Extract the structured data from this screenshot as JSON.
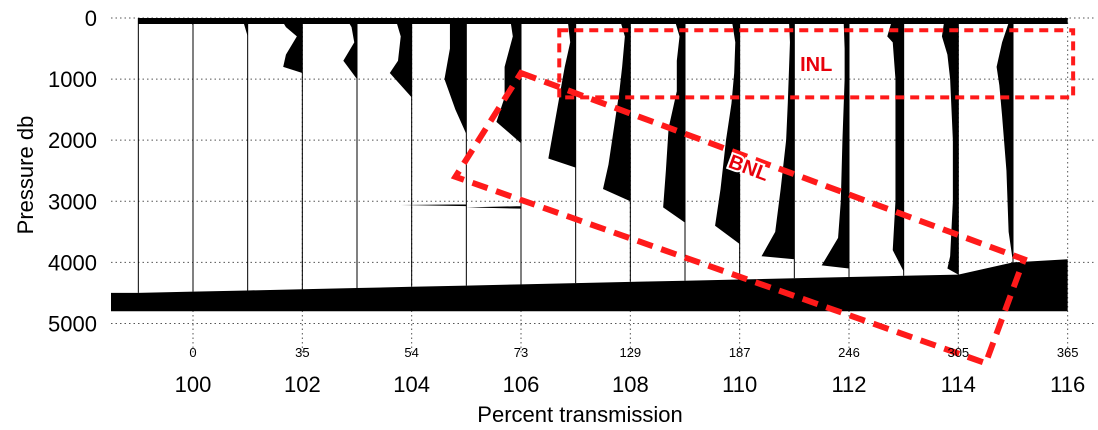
{
  "chart_data": {
    "type": "line",
    "title": "",
    "xlabel": "Percent transmission",
    "ylabel": "Pressure db",
    "xlim": [
      98.5,
      116.5
    ],
    "ylim": [
      5500,
      0
    ],
    "y_inverted": true,
    "grid": true,
    "xticks": [
      100,
      102,
      104,
      106,
      108,
      110,
      112,
      114,
      116
    ],
    "yticks": [
      0,
      1000,
      2000,
      3000,
      4000,
      5000
    ],
    "station_labels": [
      {
        "label": "0",
        "x": 100
      },
      {
        "label": "35",
        "x": 102
      },
      {
        "label": "54",
        "x": 104
      },
      {
        "label": "73",
        "x": 106
      },
      {
        "label": "129",
        "x": 108
      },
      {
        "label": "187",
        "x": 110
      },
      {
        "label": "246",
        "x": 112
      },
      {
        "label": "305",
        "x": 114
      },
      {
        "label": "365",
        "x": 116
      }
    ],
    "profiles": [
      {
        "offset": 99,
        "bottom": 4500,
        "deficit": [
          [
            0,
            0
          ],
          [
            4500,
            0
          ]
        ]
      },
      {
        "offset": 100,
        "bottom": 4480,
        "deficit": [
          [
            0,
            0.1
          ],
          [
            120,
            0
          ],
          [
            4480,
            0
          ]
        ]
      },
      {
        "offset": 101,
        "bottom": 4460,
        "deficit": [
          [
            0,
            0.1
          ],
          [
            150,
            0.05
          ],
          [
            300,
            0
          ],
          [
            4460,
            0
          ]
        ]
      },
      {
        "offset": 102,
        "bottom": 4440,
        "deficit": [
          [
            0,
            0.4
          ],
          [
            150,
            0.3
          ],
          [
            300,
            0.1
          ],
          [
            600,
            0.3
          ],
          [
            800,
            0.35
          ],
          [
            900,
            0
          ],
          [
            4440,
            0
          ]
        ]
      },
      {
        "offset": 103,
        "bottom": 4420,
        "deficit": [
          [
            0,
            0.2
          ],
          [
            150,
            0.1
          ],
          [
            400,
            0.05
          ],
          [
            700,
            0.25
          ],
          [
            1000,
            0
          ],
          [
            4420,
            0
          ]
        ]
      },
      {
        "offset": 104,
        "bottom": 4400,
        "deficit": [
          [
            0,
            0.3
          ],
          [
            300,
            0.2
          ],
          [
            700,
            0.25
          ],
          [
            900,
            0.4
          ],
          [
            1300,
            0
          ],
          [
            4400,
            0
          ]
        ]
      },
      {
        "offset": 105,
        "bottom": 4380,
        "deficit": [
          [
            0,
            0.3
          ],
          [
            500,
            0.3
          ],
          [
            1000,
            0.4
          ],
          [
            1500,
            0.2
          ],
          [
            1900,
            0
          ],
          [
            3050,
            0
          ],
          [
            3060,
            1.2
          ],
          [
            3080,
            0
          ],
          [
            4380,
            0
          ]
        ]
      },
      {
        "offset": 106,
        "bottom": 4360,
        "deficit": [
          [
            0,
            0.2
          ],
          [
            300,
            0.15
          ],
          [
            800,
            0.3
          ],
          [
            1300,
            0.3
          ],
          [
            1700,
            0.45
          ],
          [
            2050,
            0
          ],
          [
            3080,
            0
          ],
          [
            3100,
            1.0
          ],
          [
            3120,
            0
          ],
          [
            4360,
            0
          ]
        ]
      },
      {
        "offset": 107,
        "bottom": 4340,
        "deficit": [
          [
            0,
            0.15
          ],
          [
            400,
            0.1
          ],
          [
            800,
            0.2
          ],
          [
            1300,
            0.3
          ],
          [
            1800,
            0.4
          ],
          [
            2300,
            0.5
          ],
          [
            2450,
            0
          ],
          [
            4340,
            0
          ]
        ]
      },
      {
        "offset": 108,
        "bottom": 4320,
        "deficit": [
          [
            0,
            0.2
          ],
          [
            300,
            0.1
          ],
          [
            800,
            0.15
          ],
          [
            1200,
            0.2
          ],
          [
            1800,
            0.3
          ],
          [
            2400,
            0.4
          ],
          [
            2800,
            0.5
          ],
          [
            3000,
            0
          ],
          [
            4320,
            0
          ]
        ]
      },
      {
        "offset": 109,
        "bottom": 4300,
        "deficit": [
          [
            0,
            0.2
          ],
          [
            300,
            0.1
          ],
          [
            700,
            0.15
          ],
          [
            1200,
            0.15
          ],
          [
            1800,
            0.3
          ],
          [
            2500,
            0.35
          ],
          [
            3100,
            0.4
          ],
          [
            3350,
            0
          ],
          [
            4300,
            0
          ]
        ]
      },
      {
        "offset": 110,
        "bottom": 4280,
        "deficit": [
          [
            0,
            0.15
          ],
          [
            400,
            0.08
          ],
          [
            900,
            0.1
          ],
          [
            1400,
            0.15
          ],
          [
            2000,
            0.25
          ],
          [
            2800,
            0.35
          ],
          [
            3400,
            0.45
          ],
          [
            3700,
            0
          ],
          [
            4280,
            0
          ]
        ]
      },
      {
        "offset": 111,
        "bottom": 4260,
        "deficit": [
          [
            0,
            0.1
          ],
          [
            400,
            0.08
          ],
          [
            900,
            0.1
          ],
          [
            1400,
            0.12
          ],
          [
            2000,
            0.15
          ],
          [
            2800,
            0.25
          ],
          [
            3500,
            0.35
          ],
          [
            3900,
            0.6
          ],
          [
            3950,
            0
          ],
          [
            4260,
            0
          ]
        ]
      },
      {
        "offset": 112,
        "bottom": 4240,
        "deficit": [
          [
            0,
            0.1
          ],
          [
            500,
            0.08
          ],
          [
            1000,
            0.08
          ],
          [
            1500,
            0.1
          ],
          [
            2000,
            0.12
          ],
          [
            3000,
            0.15
          ],
          [
            3600,
            0.2
          ],
          [
            4050,
            0.5
          ],
          [
            4100,
            0
          ],
          [
            4240,
            0
          ]
        ]
      },
      {
        "offset": 113,
        "bottom": 4220,
        "deficit": [
          [
            0,
            0.2
          ],
          [
            300,
            0.3
          ],
          [
            400,
            0.2
          ],
          [
            1000,
            0.15
          ],
          [
            2000,
            0.15
          ],
          [
            3000,
            0.15
          ],
          [
            3800,
            0.2
          ],
          [
            4150,
            0
          ],
          [
            4220,
            0
          ]
        ]
      },
      {
        "offset": 114,
        "bottom": 4200,
        "deficit": [
          [
            0,
            0.25
          ],
          [
            300,
            0.3
          ],
          [
            600,
            0.2
          ],
          [
            1000,
            0.15
          ],
          [
            2000,
            0.1
          ],
          [
            3000,
            0.1
          ],
          [
            3900,
            0.15
          ],
          [
            4100,
            0.2
          ],
          [
            4200,
            0
          ]
        ]
      },
      {
        "offset": 115,
        "bottom": 4000,
        "deficit": [
          [
            0,
            0.05
          ],
          [
            400,
            0.2
          ],
          [
            800,
            0.3
          ],
          [
            1100,
            0.25
          ],
          [
            1600,
            0.2
          ],
          [
            2500,
            0.12
          ],
          [
            3500,
            0.08
          ],
          [
            4000,
            0
          ]
        ]
      }
    ],
    "bottom_extent": 4800,
    "annotations": [
      {
        "label": "INL",
        "type": "box",
        "x_range": [
          106.7,
          116.1
        ],
        "y_range": [
          200,
          1300
        ]
      },
      {
        "label": "BNL",
        "type": "rotated-box",
        "corners": [
          [
            106.0,
            900
          ],
          [
            115.2,
            3950
          ],
          [
            114.5,
            5650
          ],
          [
            104.8,
            2600
          ]
        ]
      }
    ]
  }
}
